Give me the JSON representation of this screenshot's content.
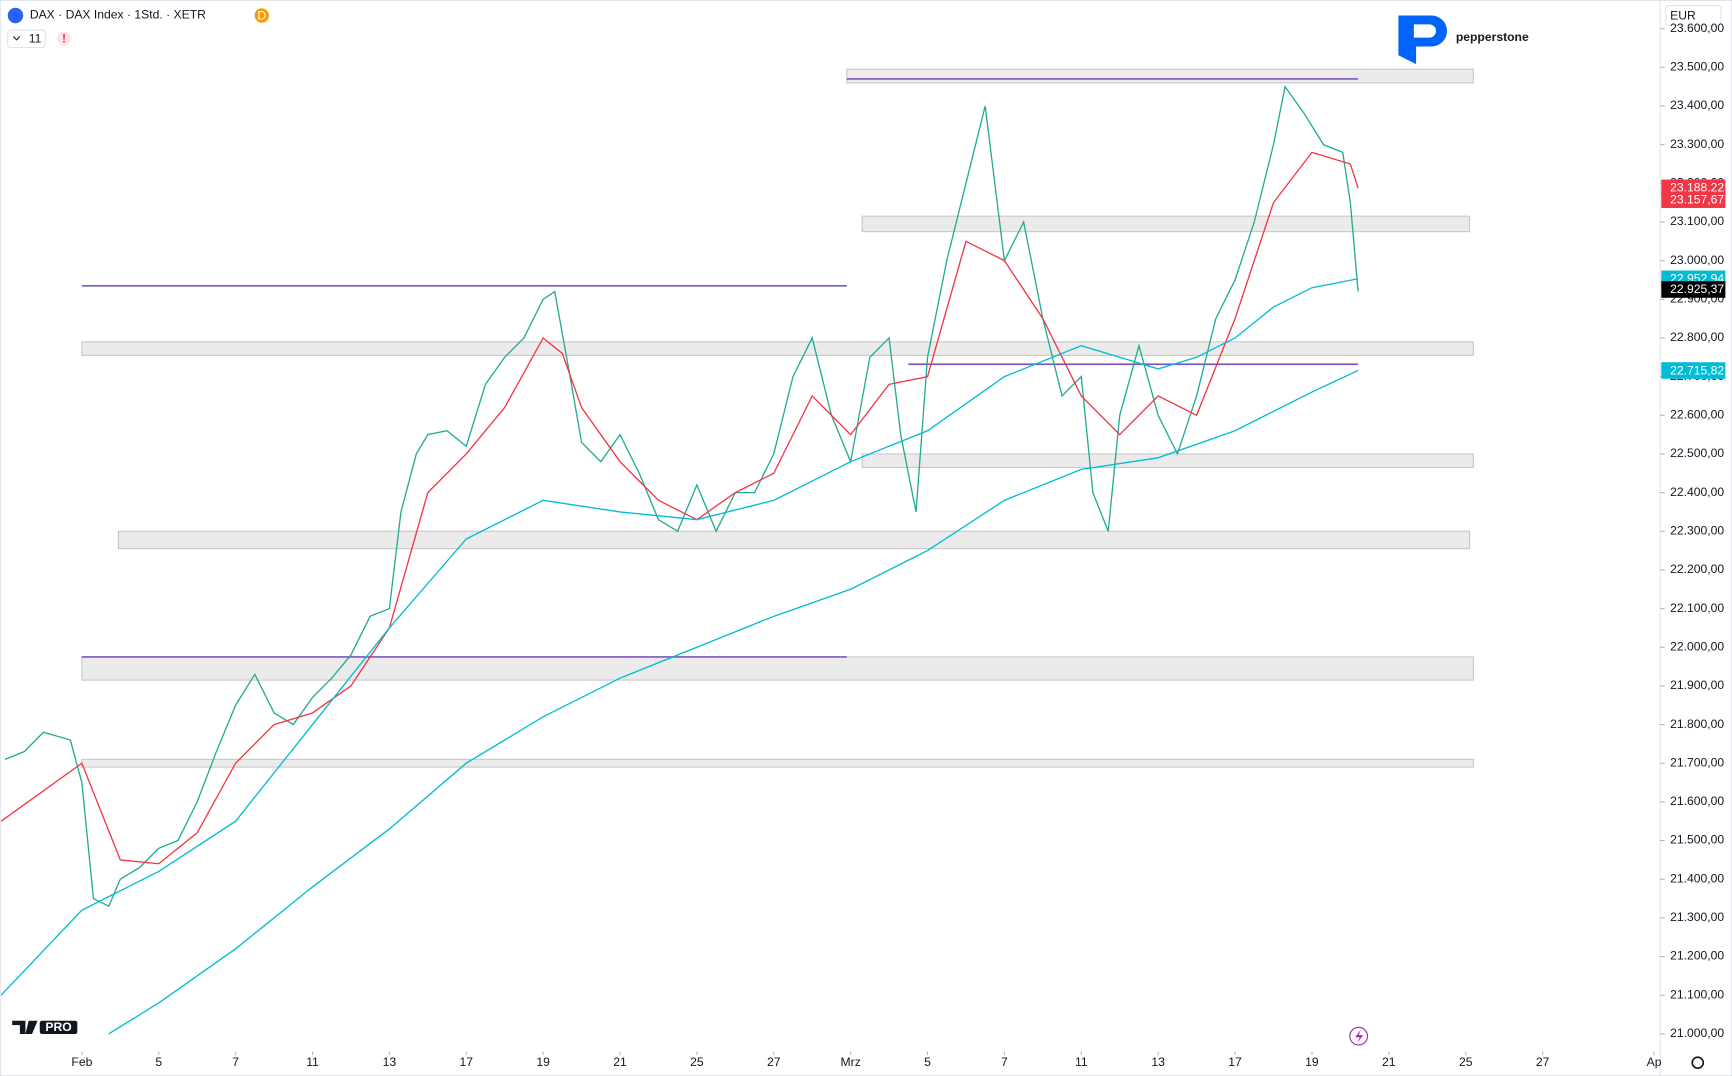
{
  "header": {
    "symbol": "DAX · DAX Index · 1Std. · XETR",
    "badge": "D",
    "indicator_count": 11,
    "alert": "!"
  },
  "currency": "EUR",
  "brand": "pepperstone",
  "logo_badge": "PRO",
  "chart_data": {
    "type": "line",
    "xlim": [
      -2.13,
      41.06
    ],
    "ylim": [
      20954,
      23674
    ],
    "grid": false,
    "xticks": [
      {
        "value": 0,
        "label": "Feb"
      },
      {
        "value": 2,
        "label": "5"
      },
      {
        "value": 4,
        "label": "7"
      },
      {
        "value": 6,
        "label": "11"
      },
      {
        "value": 8,
        "label": "13"
      },
      {
        "value": 10,
        "label": "17"
      },
      {
        "value": 12,
        "label": "19"
      },
      {
        "value": 14,
        "label": "21"
      },
      {
        "value": 16,
        "label": "25"
      },
      {
        "value": 18,
        "label": "27"
      },
      {
        "value": 20,
        "label": "Mrz"
      },
      {
        "value": 22,
        "label": "5"
      },
      {
        "value": 24,
        "label": "7"
      },
      {
        "value": 26,
        "label": "11"
      },
      {
        "value": 28,
        "label": "13"
      },
      {
        "value": 30,
        "label": "17"
      },
      {
        "value": 32,
        "label": "19"
      },
      {
        "value": 34,
        "label": "21"
      },
      {
        "value": 36,
        "label": "25"
      },
      {
        "value": 38,
        "label": "27"
      },
      {
        "value": 40.9,
        "label": "Ap"
      }
    ],
    "yticks": [
      {
        "value": 21000,
        "label": "21.000,00"
      },
      {
        "value": 21100,
        "label": "21.100,00"
      },
      {
        "value": 21200,
        "label": "21.200,00"
      },
      {
        "value": 21300,
        "label": "21.300,00"
      },
      {
        "value": 21400,
        "label": "21.400,00"
      },
      {
        "value": 21500,
        "label": "21.500,00"
      },
      {
        "value": 21600,
        "label": "21.600,00"
      },
      {
        "value": 21700,
        "label": "21.700,00"
      },
      {
        "value": 21800,
        "label": "21.800,00"
      },
      {
        "value": 21900,
        "label": "21.900,00"
      },
      {
        "value": 22000,
        "label": "22.000,00"
      },
      {
        "value": 22100,
        "label": "22.100,00"
      },
      {
        "value": 22200,
        "label": "22.200,00"
      },
      {
        "value": 22300,
        "label": "22.300,00"
      },
      {
        "value": 22400,
        "label": "22.400,00"
      },
      {
        "value": 22500,
        "label": "22.500,00"
      },
      {
        "value": 22600,
        "label": "22.600,00"
      },
      {
        "value": 22700,
        "label": "22.700,00"
      },
      {
        "value": 22800,
        "label": "22.800,00"
      },
      {
        "value": 22900,
        "label": "22.900,00"
      },
      {
        "value": 23000,
        "label": "23.000,00"
      },
      {
        "value": 23100,
        "label": "23.100,00"
      },
      {
        "value": 23200,
        "label": "23.200,00"
      },
      {
        "value": 23300,
        "label": "23.300,00"
      },
      {
        "value": 23400,
        "label": "23.400,00"
      },
      {
        "value": 23500,
        "label": "23.500,00"
      },
      {
        "value": 23600,
        "label": "23.600,00"
      }
    ],
    "zones": [
      {
        "x": [
          19.9,
          36.2
        ],
        "y": [
          23460,
          23495
        ],
        "color": "#e6e6e6"
      },
      {
        "x": [
          20.3,
          36.1
        ],
        "y": [
          23075,
          23115
        ],
        "color": "#e6e6e6"
      },
      {
        "x": [
          0,
          36.2
        ],
        "y": [
          22755,
          22790
        ],
        "color": "#e6e6e6"
      },
      {
        "x": [
          20.3,
          36.2
        ],
        "y": [
          22465,
          22500
        ],
        "color": "#e6e6e6"
      },
      {
        "x": [
          0.95,
          36.1
        ],
        "y": [
          22255,
          22300
        ],
        "color": "#e6e6e6"
      },
      {
        "x": [
          0,
          36.2
        ],
        "y": [
          21915,
          21975
        ],
        "color": "#e6e6e6"
      },
      {
        "x": [
          0,
          36.2
        ],
        "y": [
          21690,
          21710
        ],
        "color": "#e6e6e6"
      }
    ],
    "levels": [
      {
        "x": [
          19.9,
          33.2
        ],
        "y": 23470,
        "color": "#7e57c2"
      },
      {
        "x": [
          0,
          19.9
        ],
        "y": 22935,
        "color": "#7e57c2"
      },
      {
        "x": [
          21.5,
          33.2
        ],
        "y": 22732,
        "color": "#7e57c2"
      },
      {
        "x": [
          0,
          19.9
        ],
        "y": 21975,
        "color": "#7e57c2"
      }
    ],
    "series": [
      {
        "color": "#22ab94",
        "x": [
          -2,
          -1.5,
          -1,
          -0.3,
          0,
          0.3,
          0.7,
          1,
          1.5,
          2,
          2.5,
          3,
          3.5,
          4,
          4.5,
          5,
          5.5,
          6,
          6.5,
          7,
          7.5,
          8,
          8.3,
          8.7,
          9,
          9.5,
          10,
          10.5,
          11,
          11.5,
          12,
          12.3,
          12.7,
          13,
          13.5,
          14,
          14.5,
          15,
          15.5,
          16,
          16.5,
          17,
          17.5,
          18,
          18.5,
          19,
          19.5,
          20,
          20.5,
          21,
          21.3,
          21.7,
          22,
          22.5,
          23,
          23.5,
          24,
          24.5,
          25,
          25.5,
          26,
          26.3,
          26.7,
          27,
          27.5,
          28,
          28.5,
          29,
          29.5,
          30,
          30.5,
          31,
          31.3,
          31.8,
          32.3,
          32.8,
          33,
          33.2
        ],
        "values": [
          21710,
          21730,
          21780,
          21760,
          21650,
          21350,
          21330,
          21400,
          21430,
          21480,
          21500,
          21600,
          21730,
          21850,
          21930,
          21830,
          21800,
          21870,
          21920,
          21980,
          22080,
          22100,
          22350,
          22500,
          22550,
          22560,
          22520,
          22680,
          22750,
          22800,
          22900,
          22920,
          22700,
          22530,
          22480,
          22550,
          22450,
          22330,
          22300,
          22420,
          22300,
          22400,
          22400,
          22500,
          22700,
          22800,
          22600,
          22480,
          22750,
          22800,
          22550,
          22350,
          22750,
          23000,
          23200,
          23400,
          23000,
          23100,
          22850,
          22650,
          22700,
          22400,
          22300,
          22600,
          22780,
          22600,
          22500,
          22650,
          22850,
          22950,
          23100,
          23300,
          23450,
          23380,
          23300,
          23280,
          23150,
          22920
        ]
      },
      {
        "color": "#f23645",
        "x": [
          -2.1,
          0,
          1,
          2,
          3,
          4,
          5,
          6,
          7,
          8,
          9,
          10,
          11,
          12,
          12.5,
          13,
          14,
          15,
          16,
          17,
          18,
          19,
          20,
          21,
          22,
          23,
          24,
          25,
          26,
          27,
          28,
          29,
          30,
          31,
          32,
          33,
          33.2
        ],
        "values": [
          21550,
          21700,
          21450,
          21440,
          21520,
          21700,
          21800,
          21830,
          21900,
          22050,
          22400,
          22500,
          22620,
          22800,
          22760,
          22620,
          22480,
          22380,
          22330,
          22400,
          22450,
          22650,
          22550,
          22680,
          22700,
          23050,
          23000,
          22850,
          22650,
          22550,
          22650,
          22600,
          22850,
          23150,
          23280,
          23250,
          23188
        ]
      },
      {
        "color": "#00bcd4",
        "x": [
          -2.1,
          0,
          2,
          4,
          6,
          8,
          10,
          12,
          14,
          16,
          18,
          20,
          22,
          24,
          26,
          28,
          29,
          30,
          31,
          32,
          33.2
        ],
        "values": [
          21100,
          21320,
          21420,
          21550,
          21800,
          22050,
          22280,
          22380,
          22350,
          22330,
          22380,
          22480,
          22560,
          22700,
          22780,
          22720,
          22750,
          22800,
          22880,
          22930,
          22953
        ]
      },
      {
        "color": "#00bcd4",
        "x": [
          0.7,
          2,
          4,
          6,
          8,
          10,
          12,
          14,
          16,
          18,
          20,
          22,
          24,
          26,
          28,
          30,
          32,
          33.2
        ],
        "values": [
          21000,
          21080,
          21220,
          21380,
          21530,
          21700,
          21820,
          21920,
          22000,
          22080,
          22150,
          22250,
          22380,
          22460,
          22490,
          22560,
          22660,
          22716
        ]
      }
    ],
    "price_labels": [
      {
        "value": 23188.22,
        "label": "23.188,22",
        "color": "#f23645"
      },
      {
        "value": 23157.67,
        "label": "23.157,67",
        "color": "#f23645"
      },
      {
        "value": 22952.94,
        "label": "22.952,94",
        "color": "#00bcd4"
      },
      {
        "value": 22925.37,
        "label": "22.925,37",
        "color": "#000000"
      },
      {
        "value": 22715.82,
        "label": "22.715,82",
        "color": "#00bcd4"
      }
    ]
  }
}
